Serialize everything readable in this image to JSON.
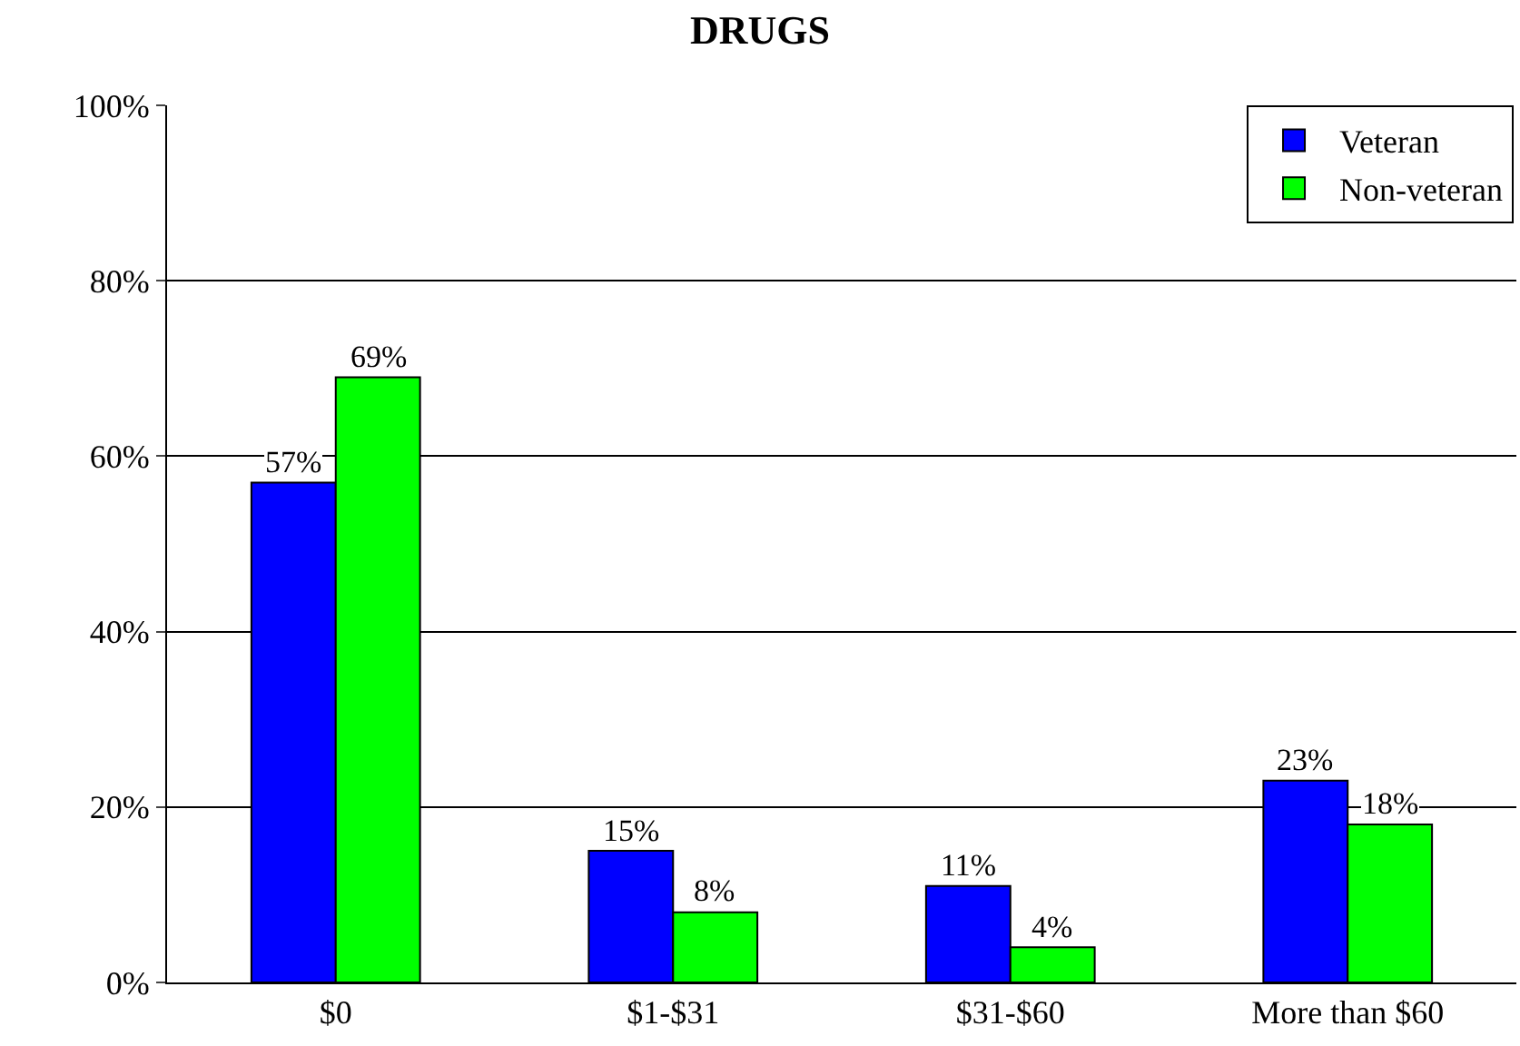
{
  "chart_data": {
    "type": "bar",
    "title": "DRUGS",
    "categories": [
      "$0",
      "$1-$31",
      "$31-$60",
      "More than $60"
    ],
    "series": [
      {
        "name": "Veteran",
        "color": "#0000ff",
        "values": [
          57,
          15,
          11,
          23
        ],
        "value_labels": [
          "57%",
          "15%",
          "11%",
          "23%"
        ]
      },
      {
        "name": "Non-veteran",
        "color": "#00ff00",
        "values": [
          69,
          8,
          4,
          18
        ],
        "value_labels": [
          "69%",
          "8%",
          "4%",
          "18%"
        ]
      }
    ],
    "ylim": [
      0,
      100
    ],
    "yticks": [
      {
        "value": 0,
        "label": "0%"
      },
      {
        "value": 20,
        "label": "20%"
      },
      {
        "value": 40,
        "label": "40%"
      },
      {
        "value": 60,
        "label": "60%"
      },
      {
        "value": 80,
        "label": "80%"
      },
      {
        "value": 100,
        "label": "100%"
      }
    ],
    "grid": "y",
    "legend": "top right"
  }
}
